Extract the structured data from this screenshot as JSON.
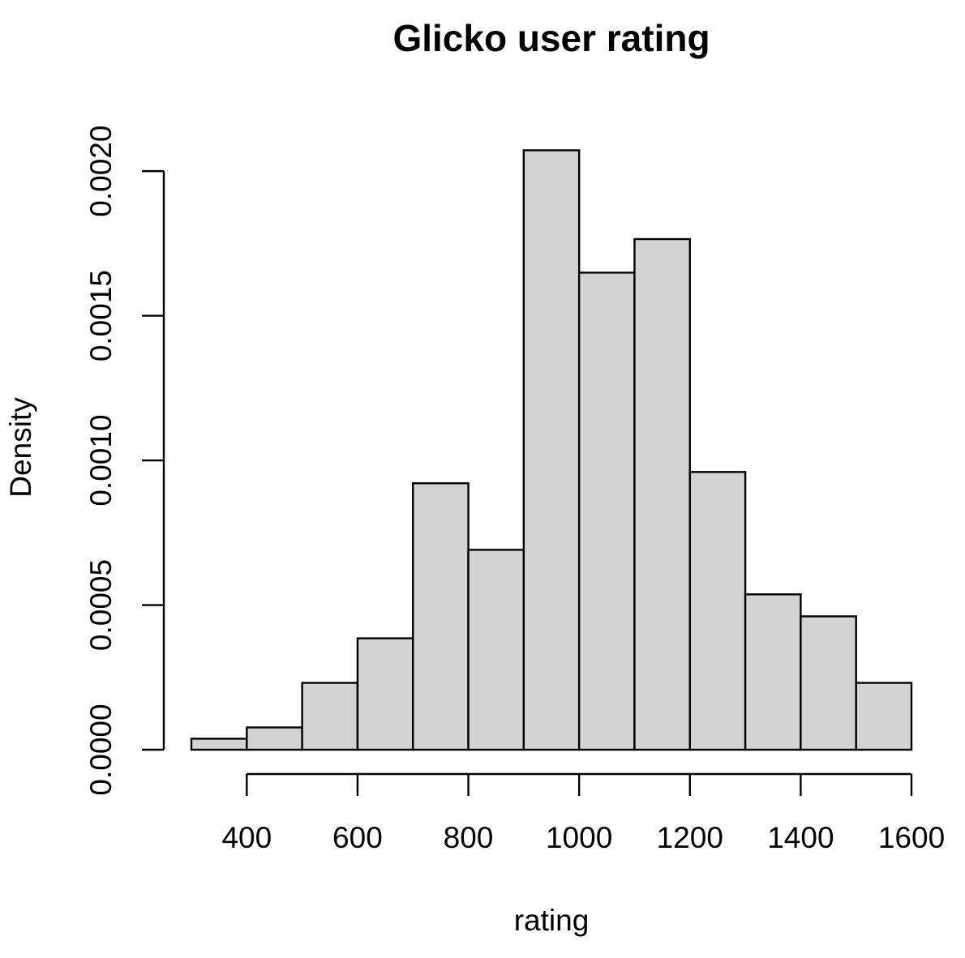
{
  "chart_data": {
    "type": "bar",
    "title": "Glicko user rating",
    "xlabel": "rating",
    "ylabel": "Density",
    "bin_edges": [
      300,
      400,
      500,
      600,
      700,
      800,
      900,
      1000,
      1100,
      1200,
      1300,
      1400,
      1500,
      1600
    ],
    "values": [
      3.8e-05,
      7.7e-05,
      0.000231,
      0.000385,
      0.000921,
      0.000691,
      0.002072,
      0.001649,
      0.001765,
      0.00096,
      0.000537,
      0.000461,
      0.000231
    ],
    "xlim": [
      300,
      1600
    ],
    "ylim": [
      0,
      0.00209
    ],
    "x_ticks": [
      400,
      600,
      800,
      1000,
      1200,
      1400,
      1600
    ],
    "x_tick_labels": [
      "400",
      "600",
      "800",
      "1000",
      "1200",
      "1400",
      "1600"
    ],
    "y_ticks": [
      0,
      0.0005,
      0.001,
      0.0015,
      0.002
    ],
    "y_tick_labels": [
      "0.0000",
      "0.0005",
      "0.0010",
      "0.0015",
      "0.0020"
    ],
    "bar_color": "#d3d3d3",
    "grid": false,
    "legend": "none"
  }
}
